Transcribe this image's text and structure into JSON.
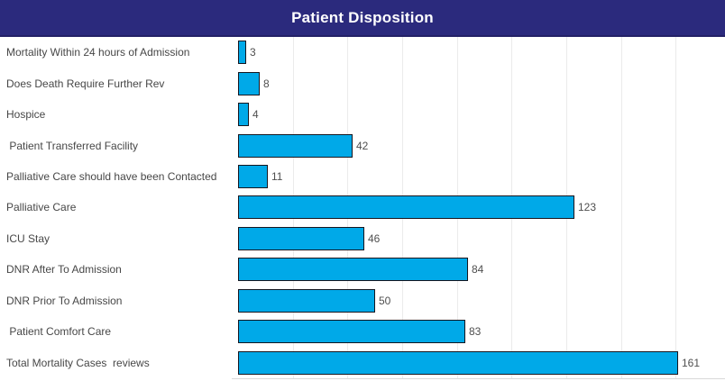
{
  "header": {
    "title": "Patient Disposition",
    "bg_color": "#2b2a7d",
    "border_color": "#232066",
    "text_color": "#ffffff"
  },
  "chart_data": {
    "type": "bar",
    "orientation": "horizontal",
    "title": "Patient Disposition",
    "categories": [
      "Mortality Within 24 hours of Admission",
      "Does Death Require Further Rev",
      "Hospice",
      " Patient Transferred Facility",
      "Palliative Care should have been Contacted",
      "Palliative Care",
      "ICU Stay",
      "DNR After To Admission",
      "DNR Prior To Admission",
      " Patient Comfort Care",
      "Total Mortality Cases  reviews"
    ],
    "values": [
      3,
      8,
      4,
      42,
      11,
      123,
      46,
      84,
      50,
      83,
      161
    ],
    "value_labels": [
      "3",
      "8",
      "4",
      "42",
      "11",
      "123",
      "46",
      "84",
      "50",
      "83",
      "161"
    ],
    "xlim": [
      0,
      178
    ],
    "gridline_interval": 20,
    "grid": true,
    "legend": false,
    "bar_color": "#00a9e8",
    "bar_border_color": "#15161f",
    "gridline_color": "#ebebeb",
    "label_color": "#474747",
    "value_label_color": "#4f4f4f"
  }
}
